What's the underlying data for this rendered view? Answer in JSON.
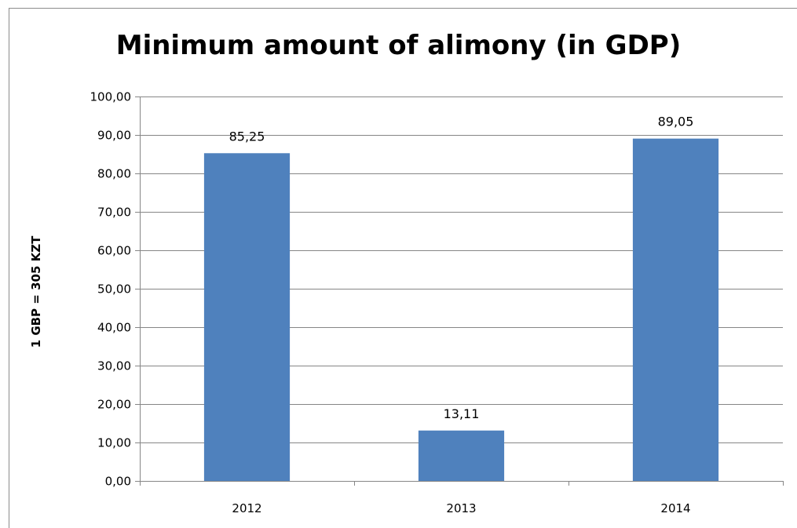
{
  "chart_data": {
    "type": "bar",
    "title": "Minimum amount of alimony (in GDP)",
    "xlabel": "",
    "ylabel": "1 GBP = 305 KZT",
    "categories": [
      "2012",
      "2013",
      "2014"
    ],
    "values": [
      85.25,
      13.11,
      89.05
    ],
    "data_labels": [
      "85,25",
      "13,11",
      "89,05"
    ],
    "ylim": [
      0,
      100
    ],
    "y_ticks": [
      0,
      10,
      20,
      30,
      40,
      50,
      60,
      70,
      80,
      90,
      100
    ],
    "y_tick_labels": [
      "0,00",
      "10,00",
      "20,00",
      "30,00",
      "40,00",
      "50,00",
      "60,00",
      "70,00",
      "80,00",
      "90,00",
      "100,00"
    ],
    "grid": true,
    "legend": "none",
    "bar_color": "#4f81bd",
    "grid_color": "#868686"
  }
}
